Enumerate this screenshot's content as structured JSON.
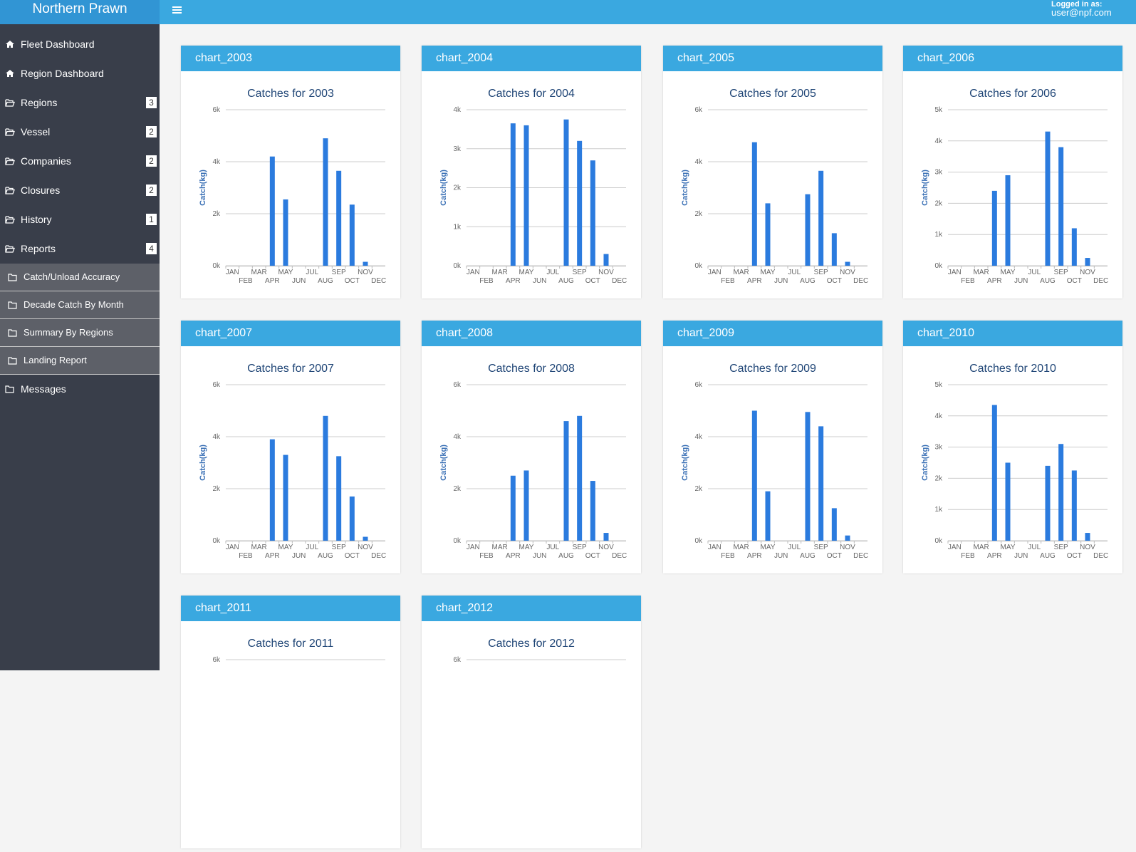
{
  "header": {
    "brand": "Northern Prawn",
    "logged_in_label": "Logged in as:",
    "user": "user@npf.com"
  },
  "sidebar": {
    "items": [
      {
        "label": "Fleet Dashboard",
        "icon": "home"
      },
      {
        "label": "Region Dashboard",
        "icon": "home"
      },
      {
        "label": "Regions",
        "badge": 3,
        "icon": "folder-open"
      },
      {
        "label": "Vessel",
        "badge": 2,
        "icon": "folder-open"
      },
      {
        "label": "Companies",
        "badge": 2,
        "icon": "folder-open"
      },
      {
        "label": "Closures",
        "badge": 2,
        "icon": "folder-open"
      },
      {
        "label": "History",
        "badge": 1,
        "icon": "folder-open"
      },
      {
        "label": "Reports",
        "badge": 4,
        "icon": "folder-open",
        "children": [
          "Catch/Unload Accuracy",
          "Decade Catch By Month",
          "Summary By Regions",
          "Landing Report"
        ]
      },
      {
        "label": "Messages",
        "icon": "folder"
      }
    ]
  },
  "panels": [
    {
      "name": "chart_2003",
      "chart_data": {
        "type": "bar",
        "title": "Catches for 2003",
        "y_label": "Catch(kg)",
        "color": "#2b7bde",
        "grid": true,
        "categories": [
          "JAN",
          "FEB",
          "MAR",
          "APR",
          "MAY",
          "JUN",
          "JUL",
          "AUG",
          "SEP",
          "OCT",
          "NOV",
          "DEC"
        ],
        "values": [
          0,
          0,
          0,
          4200,
          2550,
          0,
          0,
          4900,
          3650,
          2350,
          150,
          0
        ],
        "ylim": [
          0,
          6000
        ],
        "yticks": [
          {
            "value": 0,
            "label": "0k"
          },
          {
            "value": 2000,
            "label": "2k"
          },
          {
            "value": 4000,
            "label": "4k"
          },
          {
            "value": 6000,
            "label": "6k"
          }
        ]
      }
    },
    {
      "name": "chart_2004",
      "chart_data": {
        "type": "bar",
        "title": "Catches for 2004",
        "y_label": "Catch(kg)",
        "color": "#2b7bde",
        "grid": true,
        "categories": [
          "JAN",
          "FEB",
          "MAR",
          "APR",
          "MAY",
          "JUN",
          "JUL",
          "AUG",
          "SEP",
          "OCT",
          "NOV",
          "DEC"
        ],
        "values": [
          0,
          0,
          0,
          3650,
          3600,
          0,
          0,
          3750,
          3200,
          2700,
          300,
          0
        ],
        "ylim": [
          0,
          4000
        ],
        "yticks": [
          {
            "value": 0,
            "label": "0k"
          },
          {
            "value": 1000,
            "label": "1k"
          },
          {
            "value": 2000,
            "label": "2k"
          },
          {
            "value": 3000,
            "label": "3k"
          },
          {
            "value": 4000,
            "label": "4k"
          }
        ]
      }
    },
    {
      "name": "chart_2005",
      "chart_data": {
        "type": "bar",
        "title": "Catches for 2005",
        "y_label": "Catch(kg)",
        "color": "#2b7bde",
        "grid": true,
        "categories": [
          "JAN",
          "FEB",
          "MAR",
          "APR",
          "MAY",
          "JUN",
          "JUL",
          "AUG",
          "SEP",
          "OCT",
          "NOV",
          "DEC"
        ],
        "values": [
          0,
          0,
          0,
          4750,
          2400,
          0,
          0,
          2750,
          3650,
          1250,
          150,
          0
        ],
        "ylim": [
          0,
          6000
        ],
        "yticks": [
          {
            "value": 0,
            "label": "0k"
          },
          {
            "value": 2000,
            "label": "2k"
          },
          {
            "value": 4000,
            "label": "4k"
          },
          {
            "value": 6000,
            "label": "6k"
          }
        ]
      }
    },
    {
      "name": "chart_2006",
      "chart_data": {
        "type": "bar",
        "title": "Catches for 2006",
        "y_label": "Catch(kg)",
        "color": "#2b7bde",
        "grid": true,
        "categories": [
          "JAN",
          "FEB",
          "MAR",
          "APR",
          "MAY",
          "JUN",
          "JUL",
          "AUG",
          "SEP",
          "OCT",
          "NOV",
          "DEC"
        ],
        "values": [
          0,
          0,
          0,
          2400,
          2900,
          0,
          0,
          4300,
          3800,
          1200,
          250,
          0
        ],
        "ylim": [
          0,
          5000
        ],
        "yticks": [
          {
            "value": 0,
            "label": "0k"
          },
          {
            "value": 1000,
            "label": "1k"
          },
          {
            "value": 2000,
            "label": "2k"
          },
          {
            "value": 3000,
            "label": "3k"
          },
          {
            "value": 4000,
            "label": "4k"
          },
          {
            "value": 5000,
            "label": "5k"
          }
        ]
      }
    },
    {
      "name": "chart_2007",
      "chart_data": {
        "type": "bar",
        "title": "Catches for 2007",
        "y_label": "Catch(kg)",
        "color": "#2b7bde",
        "grid": true,
        "categories": [
          "JAN",
          "FEB",
          "MAR",
          "APR",
          "MAY",
          "JUN",
          "JUL",
          "AUG",
          "SEP",
          "OCT",
          "NOV",
          "DEC"
        ],
        "values": [
          0,
          0,
          0,
          3900,
          3300,
          0,
          0,
          4800,
          3250,
          1700,
          150,
          0
        ],
        "ylim": [
          0,
          6000
        ],
        "yticks": [
          {
            "value": 0,
            "label": "0k"
          },
          {
            "value": 2000,
            "label": "2k"
          },
          {
            "value": 4000,
            "label": "4k"
          },
          {
            "value": 6000,
            "label": "6k"
          }
        ]
      }
    },
    {
      "name": "chart_2008",
      "chart_data": {
        "type": "bar",
        "title": "Catches for 2008",
        "y_label": "Catch(kg)",
        "color": "#2b7bde",
        "grid": true,
        "categories": [
          "JAN",
          "FEB",
          "MAR",
          "APR",
          "MAY",
          "JUN",
          "JUL",
          "AUG",
          "SEP",
          "OCT",
          "NOV",
          "DEC"
        ],
        "values": [
          0,
          0,
          0,
          2500,
          2700,
          0,
          0,
          4600,
          4800,
          2300,
          300,
          0
        ],
        "ylim": [
          0,
          6000
        ],
        "yticks": [
          {
            "value": 0,
            "label": "0k"
          },
          {
            "value": 2000,
            "label": "2k"
          },
          {
            "value": 4000,
            "label": "4k"
          },
          {
            "value": 6000,
            "label": "6k"
          }
        ]
      }
    },
    {
      "name": "chart_2009",
      "chart_data": {
        "type": "bar",
        "title": "Catches for 2009",
        "y_label": "Catch(kg)",
        "color": "#2b7bde",
        "grid": true,
        "categories": [
          "JAN",
          "FEB",
          "MAR",
          "APR",
          "MAY",
          "JUN",
          "JUL",
          "AUG",
          "SEP",
          "OCT",
          "NOV",
          "DEC"
        ],
        "values": [
          0,
          0,
          0,
          5000,
          1900,
          0,
          0,
          4950,
          4400,
          1250,
          200,
          0
        ],
        "ylim": [
          0,
          6000
        ],
        "yticks": [
          {
            "value": 0,
            "label": "0k"
          },
          {
            "value": 2000,
            "label": "2k"
          },
          {
            "value": 4000,
            "label": "4k"
          },
          {
            "value": 6000,
            "label": "6k"
          }
        ]
      }
    },
    {
      "name": "chart_2010",
      "chart_data": {
        "type": "bar",
        "title": "Catches for 2010",
        "y_label": "Catch(kg)",
        "color": "#2b7bde",
        "grid": true,
        "categories": [
          "JAN",
          "FEB",
          "MAR",
          "APR",
          "MAY",
          "JUN",
          "JUL",
          "AUG",
          "SEP",
          "OCT",
          "NOV",
          "DEC"
        ],
        "values": [
          0,
          0,
          0,
          4350,
          2500,
          0,
          0,
          2400,
          3100,
          2250,
          250,
          0
        ],
        "ylim": [
          0,
          5000
        ],
        "yticks": [
          {
            "value": 0,
            "label": "0k"
          },
          {
            "value": 1000,
            "label": "1k"
          },
          {
            "value": 2000,
            "label": "2k"
          },
          {
            "value": 3000,
            "label": "3k"
          },
          {
            "value": 4000,
            "label": "4k"
          },
          {
            "value": 5000,
            "label": "5k"
          }
        ]
      }
    },
    {
      "name": "chart_2011",
      "chart_data": {
        "type": "bar",
        "title": "Catches for 2011",
        "grid": true,
        "ylim": [
          0,
          6000
        ],
        "yticks": [
          {
            "value": 6000,
            "label": "6k"
          }
        ]
      }
    },
    {
      "name": "chart_2012",
      "chart_data": {
        "type": "bar",
        "title": "Catches for 2012",
        "grid": true,
        "ylim": [
          0,
          6000
        ],
        "yticks": [
          {
            "value": 6000,
            "label": "6k"
          }
        ]
      }
    }
  ]
}
